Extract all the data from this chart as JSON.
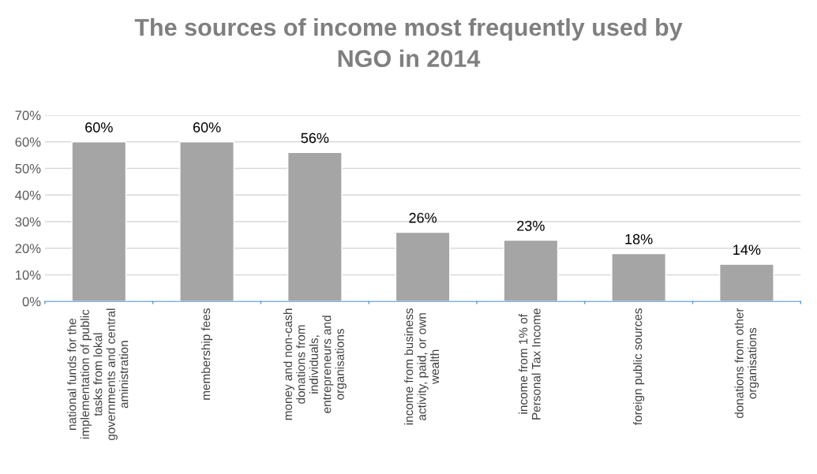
{
  "chart_data": {
    "type": "bar",
    "title": "The sources of income most frequently used by NGO in 2014",
    "categories": [
      "national funds for the implementation of public tasks from lokal governments and central aministration",
      "membership fees",
      "money and non-cash donations from individuals, entrepreneurs and organisations",
      "income from business activity, paid, or own wealth",
      "income from 1% of Personal Tax Income",
      "foreign public sources",
      "donations from other organisations"
    ],
    "values": [
      60,
      60,
      56,
      26,
      23,
      18,
      14
    ],
    "value_labels": [
      "60%",
      "60%",
      "56%",
      "26%",
      "23%",
      "18%",
      "14%"
    ],
    "color": "#a5a5a5",
    "ylim": [
      0,
      70
    ],
    "yticks": [
      {
        "value": 0,
        "label": "0%"
      },
      {
        "value": 10,
        "label": "10%"
      },
      {
        "value": 20,
        "label": "20%"
      },
      {
        "value": 30,
        "label": "30%"
      },
      {
        "value": 40,
        "label": "40%"
      },
      {
        "value": 50,
        "label": "50%"
      },
      {
        "value": 60,
        "label": "60%"
      },
      {
        "value": 70,
        "label": "70%"
      }
    ],
    "grid": "y",
    "legend": false
  }
}
